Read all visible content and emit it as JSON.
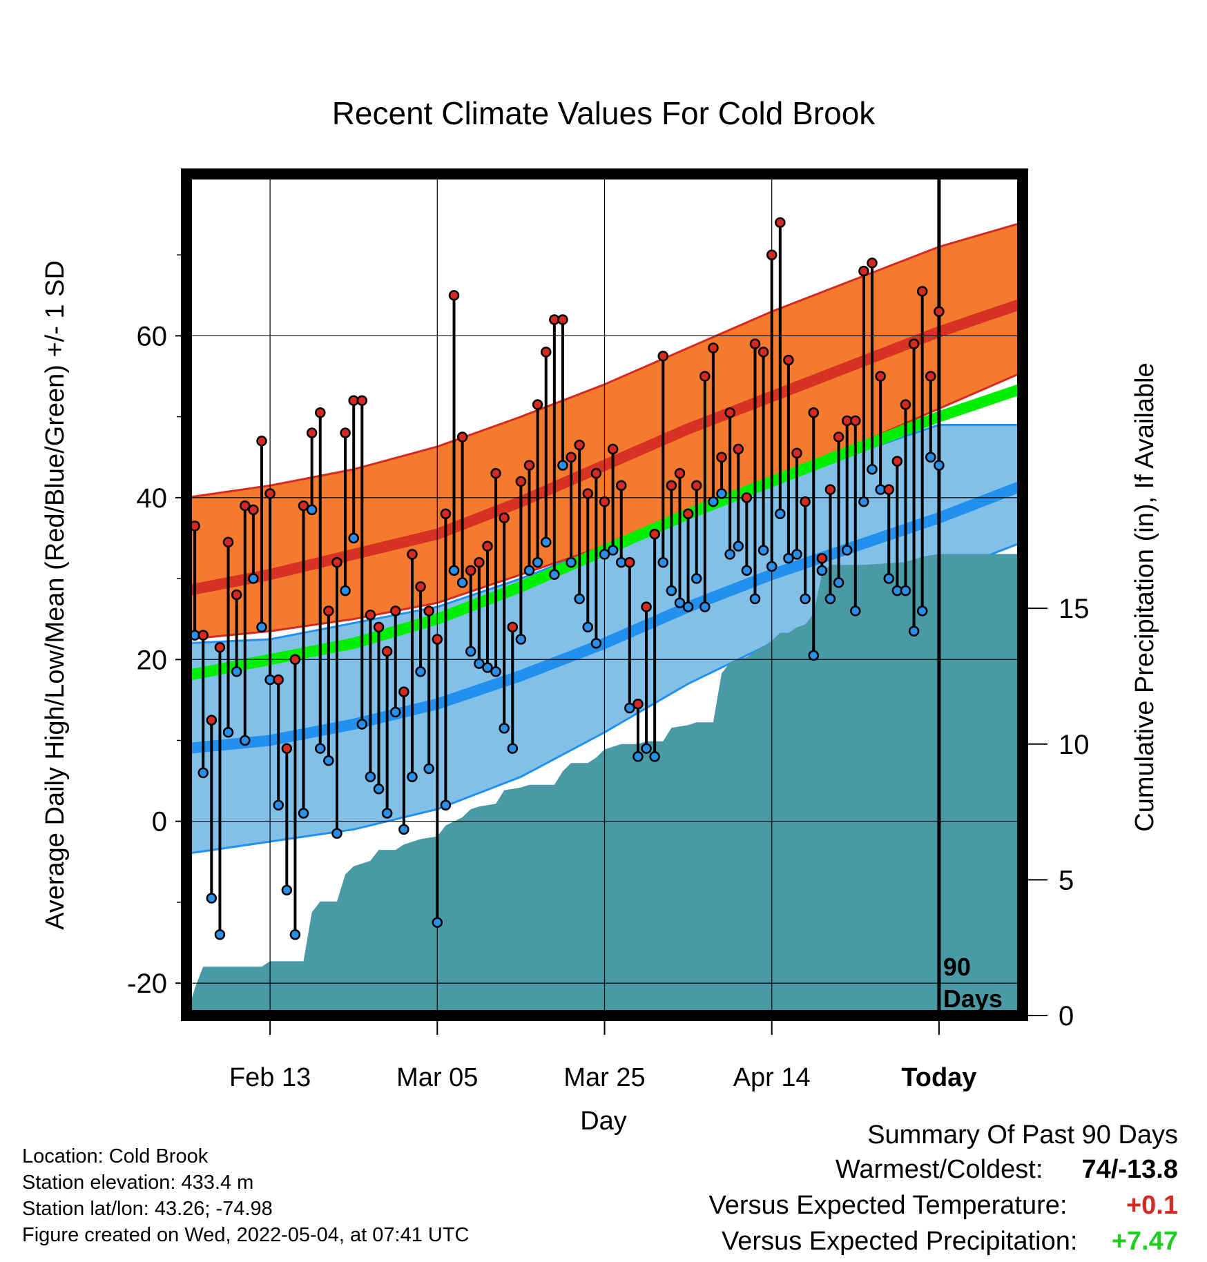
{
  "chart_data": {
    "type": "line",
    "title": "Recent Climate Values For Cold Brook",
    "xlabel": "Day",
    "ylabel": "Average Daily High/Low/Mean (Red/Blue/Green) +/- 1 SD",
    "y2label": "Cumulative Precipitation (in), If Available",
    "x_start_date": "2022-02-03",
    "today_date": "2022-05-04",
    "x_end_date": "2022-05-14",
    "xticks": [
      {
        "date": "2022-02-13",
        "label": "Feb 13"
      },
      {
        "date": "2022-03-05",
        "label": "Mar 05"
      },
      {
        "date": "2022-03-25",
        "label": "Mar 25"
      },
      {
        "date": "2022-04-14",
        "label": "Apr 14"
      },
      {
        "date": "2022-05-04",
        "label": "Today"
      }
    ],
    "ylim": [
      -24,
      80
    ],
    "yticks": [
      -20,
      0,
      20,
      40,
      60
    ],
    "y2lim": [
      0,
      31
    ],
    "y2ticks": [
      0,
      5,
      10,
      15
    ],
    "today_marker": "90\nDays",
    "grid": true,
    "colors": {
      "high_band": "#f47b2e",
      "high_mean": "#d42a22",
      "low_band": "#82c0e8",
      "low_mean": "#2190ee",
      "mean": "#00ee00",
      "precip": "#4a9aa6",
      "high_point": "#d42a22",
      "low_point": "#2b8ee8"
    },
    "normals": {
      "dates": [
        "2022-02-03",
        "2022-02-13",
        "2022-02-23",
        "2022-03-05",
        "2022-03-15",
        "2022-03-25",
        "2022-04-04",
        "2022-04-14",
        "2022-04-24",
        "2022-05-04",
        "2022-05-14"
      ],
      "high_mean": [
        28.5,
        30.5,
        33.0,
        35.5,
        39.5,
        44.0,
        48.5,
        52.5,
        56.5,
        60.5,
        64.0
      ],
      "high_upper": [
        40,
        41.5,
        43.5,
        46.3,
        50.0,
        54.0,
        58.5,
        63.0,
        67.0,
        71.0,
        74.0
      ],
      "high_lower": [
        22.5,
        23.5,
        25.0,
        27.0,
        30.5,
        34.0,
        38.5,
        42.5,
        46.5,
        51.0,
        55.5
      ],
      "mean": [
        18.0,
        20.0,
        22.0,
        25.0,
        29.0,
        33.5,
        38.0,
        42.0,
        46.0,
        50.0,
        53.5
      ],
      "low_mean": [
        9.0,
        10.0,
        12.0,
        14.5,
        18.0,
        22.0,
        26.5,
        30.5,
        34.0,
        37.5,
        41.5
      ],
      "low_upper": [
        22.0,
        22.5,
        24.5,
        26.5,
        30.0,
        34.0,
        38.0,
        42.0,
        45.5,
        49.0,
        49.0
      ],
      "low_lower": [
        -4.0,
        -2.5,
        -1.0,
        1.5,
        5.5,
        11.0,
        17.0,
        22.0,
        26.5,
        30.5,
        34.5
      ]
    },
    "daily": [
      {
        "date": "2022-02-04",
        "high": 36.5,
        "low": 23.0
      },
      {
        "date": "2022-02-05",
        "high": 23.0,
        "low": 6.0
      },
      {
        "date": "2022-02-06",
        "high": 12.5,
        "low": -9.5
      },
      {
        "date": "2022-02-07",
        "high": 21.5,
        "low": -14.0
      },
      {
        "date": "2022-02-08",
        "high": 34.5,
        "low": 11.0
      },
      {
        "date": "2022-02-09",
        "high": 28.0,
        "low": 18.5
      },
      {
        "date": "2022-02-10",
        "high": 39.0,
        "low": 10.0
      },
      {
        "date": "2022-02-11",
        "high": 38.5,
        "low": 30.0
      },
      {
        "date": "2022-02-12",
        "high": 47.0,
        "low": 24.0
      },
      {
        "date": "2022-02-13",
        "high": 40.5,
        "low": 17.5
      },
      {
        "date": "2022-02-14",
        "high": 17.5,
        "low": 2.0
      },
      {
        "date": "2022-02-15",
        "high": 9.0,
        "low": -8.5
      },
      {
        "date": "2022-02-16",
        "high": 20.0,
        "low": -14.0
      },
      {
        "date": "2022-02-17",
        "high": 39.0,
        "low": 1.0
      },
      {
        "date": "2022-02-18",
        "high": 48.0,
        "low": 38.5
      },
      {
        "date": "2022-02-19",
        "high": 50.5,
        "low": 9.0
      },
      {
        "date": "2022-02-20",
        "high": 26.0,
        "low": 7.5
      },
      {
        "date": "2022-02-21",
        "high": 32.0,
        "low": -1.5
      },
      {
        "date": "2022-02-22",
        "high": 48.0,
        "low": 28.5
      },
      {
        "date": "2022-02-23",
        "high": 52.0,
        "low": 35.0
      },
      {
        "date": "2022-02-24",
        "high": 52.0,
        "low": 12.0
      },
      {
        "date": "2022-02-25",
        "high": 25.5,
        "low": 5.5
      },
      {
        "date": "2022-02-26",
        "high": 24.0,
        "low": 4.0
      },
      {
        "date": "2022-02-27",
        "high": 21.0,
        "low": 1.0
      },
      {
        "date": "2022-02-28",
        "high": 26.0,
        "low": 13.5
      },
      {
        "date": "2022-03-01",
        "high": 16.0,
        "low": -1.0
      },
      {
        "date": "2022-03-02",
        "high": 33.0,
        "low": 5.5
      },
      {
        "date": "2022-03-03",
        "high": 29.0,
        "low": 18.5
      },
      {
        "date": "2022-03-04",
        "high": 26.0,
        "low": 6.5
      },
      {
        "date": "2022-03-05",
        "high": 22.5,
        "low": -12.5
      },
      {
        "date": "2022-03-06",
        "high": 38.0,
        "low": 2.0
      },
      {
        "date": "2022-03-07",
        "high": 65.0,
        "low": 31.0
      },
      {
        "date": "2022-03-08",
        "high": 47.5,
        "low": 29.5
      },
      {
        "date": "2022-03-09",
        "high": 31.0,
        "low": 21.0
      },
      {
        "date": "2022-03-10",
        "high": 32.0,
        "low": 19.5
      },
      {
        "date": "2022-03-11",
        "high": 34.0,
        "low": 19.0
      },
      {
        "date": "2022-03-12",
        "high": 43.0,
        "low": 18.5
      },
      {
        "date": "2022-03-13",
        "high": 37.5,
        "low": 11.5
      },
      {
        "date": "2022-03-14",
        "high": 24.0,
        "low": 9.0
      },
      {
        "date": "2022-03-15",
        "high": 42.0,
        "low": 22.5
      },
      {
        "date": "2022-03-16",
        "high": 44.0,
        "low": 31.0
      },
      {
        "date": "2022-03-17",
        "high": 51.5,
        "low": 32.0
      },
      {
        "date": "2022-03-18",
        "high": 58.0,
        "low": 34.5
      },
      {
        "date": "2022-03-19",
        "high": 62.0,
        "low": 30.5
      },
      {
        "date": "2022-03-20",
        "high": 62.0,
        "low": 44.0
      },
      {
        "date": "2022-03-21",
        "high": 45.0,
        "low": 32.0
      },
      {
        "date": "2022-03-22",
        "high": 46.5,
        "low": 27.5
      },
      {
        "date": "2022-03-23",
        "high": 40.5,
        "low": 24.0
      },
      {
        "date": "2022-03-24",
        "high": 43.0,
        "low": 22.0
      },
      {
        "date": "2022-03-25",
        "high": 39.5,
        "low": 33.0
      },
      {
        "date": "2022-03-26",
        "high": 46.0,
        "low": 33.5
      },
      {
        "date": "2022-03-27",
        "high": 41.5,
        "low": 32.0
      },
      {
        "date": "2022-03-28",
        "high": 32.0,
        "low": 14.0
      },
      {
        "date": "2022-03-29",
        "high": 14.5,
        "low": 8.0
      },
      {
        "date": "2022-03-30",
        "high": 26.5,
        "low": 9.0
      },
      {
        "date": "2022-03-31",
        "high": 35.5,
        "low": 8.0
      },
      {
        "date": "2022-04-01",
        "high": 57.5,
        "low": 32.0
      },
      {
        "date": "2022-04-02",
        "high": 41.5,
        "low": 28.5
      },
      {
        "date": "2022-04-03",
        "high": 43.0,
        "low": 27.0
      },
      {
        "date": "2022-04-04",
        "high": 38.0,
        "low": 26.5
      },
      {
        "date": "2022-04-05",
        "high": 41.5,
        "low": 30.0
      },
      {
        "date": "2022-04-06",
        "high": 55.0,
        "low": 26.5
      },
      {
        "date": "2022-04-07",
        "high": 58.5,
        "low": 39.5
      },
      {
        "date": "2022-04-08",
        "high": 45.0,
        "low": 40.5
      },
      {
        "date": "2022-04-09",
        "high": 50.5,
        "low": 33.0
      },
      {
        "date": "2022-04-10",
        "high": 46.0,
        "low": 34.0
      },
      {
        "date": "2022-04-11",
        "high": 40.0,
        "low": 31.0
      },
      {
        "date": "2022-04-12",
        "high": 59.0,
        "low": 27.5
      },
      {
        "date": "2022-04-13",
        "high": 58.0,
        "low": 33.5
      },
      {
        "date": "2022-04-14",
        "high": 70.0,
        "low": 31.5
      },
      {
        "date": "2022-04-15",
        "high": 74.0,
        "low": 38.0
      },
      {
        "date": "2022-04-16",
        "high": 57.0,
        "low": 32.5
      },
      {
        "date": "2022-04-17",
        "high": 45.5,
        "low": 33.0
      },
      {
        "date": "2022-04-18",
        "high": 39.5,
        "low": 27.5
      },
      {
        "date": "2022-04-19",
        "high": 50.5,
        "low": 20.5
      },
      {
        "date": "2022-04-20",
        "high": 32.5,
        "low": 31.0
      },
      {
        "date": "2022-04-21",
        "high": 41.0,
        "low": 27.5
      },
      {
        "date": "2022-04-22",
        "high": 47.5,
        "low": 29.5
      },
      {
        "date": "2022-04-23",
        "high": 49.5,
        "low": 33.5
      },
      {
        "date": "2022-04-24",
        "high": 49.5,
        "low": 26.0
      },
      {
        "date": "2022-04-25",
        "high": 68.0,
        "low": 39.5
      },
      {
        "date": "2022-04-26",
        "high": 69.0,
        "low": 43.5
      },
      {
        "date": "2022-04-27",
        "high": 55.0,
        "low": 41.0
      },
      {
        "date": "2022-04-28",
        "high": 41.0,
        "low": 30.0
      },
      {
        "date": "2022-04-29",
        "high": 44.5,
        "low": 28.5
      },
      {
        "date": "2022-04-30",
        "high": 51.5,
        "low": 28.5
      },
      {
        "date": "2022-05-01",
        "high": 59.0,
        "low": 23.5
      },
      {
        "date": "2022-05-02",
        "high": 65.5,
        "low": 26.0
      },
      {
        "date": "2022-05-03",
        "high": 55.0,
        "low": 45.0
      },
      {
        "date": "2022-05-04",
        "high": 63.0,
        "low": 44.0
      }
    ],
    "precip_cumulative": [
      {
        "date": "2022-02-03",
        "value": 0.0
      },
      {
        "date": "2022-02-04",
        "value": 1.0
      },
      {
        "date": "2022-02-05",
        "value": 1.8
      },
      {
        "date": "2022-02-12",
        "value": 1.8
      },
      {
        "date": "2022-02-13",
        "value": 2.0
      },
      {
        "date": "2022-02-17",
        "value": 2.0
      },
      {
        "date": "2022-02-18",
        "value": 3.8
      },
      {
        "date": "2022-02-19",
        "value": 4.2
      },
      {
        "date": "2022-02-21",
        "value": 4.2
      },
      {
        "date": "2022-02-22",
        "value": 5.2
      },
      {
        "date": "2022-02-23",
        "value": 5.5
      },
      {
        "date": "2022-02-25",
        "value": 5.7
      },
      {
        "date": "2022-02-26",
        "value": 6.1
      },
      {
        "date": "2022-02-28",
        "value": 6.1
      },
      {
        "date": "2022-03-01",
        "value": 6.3
      },
      {
        "date": "2022-03-03",
        "value": 6.5
      },
      {
        "date": "2022-03-05",
        "value": 6.6
      },
      {
        "date": "2022-03-06",
        "value": 7.0
      },
      {
        "date": "2022-03-08",
        "value": 7.3
      },
      {
        "date": "2022-03-09",
        "value": 7.6
      },
      {
        "date": "2022-03-10",
        "value": 7.7
      },
      {
        "date": "2022-03-12",
        "value": 7.8
      },
      {
        "date": "2022-03-13",
        "value": 8.3
      },
      {
        "date": "2022-03-15",
        "value": 8.4
      },
      {
        "date": "2022-03-16",
        "value": 8.5
      },
      {
        "date": "2022-03-19",
        "value": 8.5
      },
      {
        "date": "2022-03-20",
        "value": 9.0
      },
      {
        "date": "2022-03-21",
        "value": 9.3
      },
      {
        "date": "2022-03-23",
        "value": 9.3
      },
      {
        "date": "2022-03-24",
        "value": 9.5
      },
      {
        "date": "2022-03-25",
        "value": 9.8
      },
      {
        "date": "2022-03-27",
        "value": 10.0
      },
      {
        "date": "2022-03-29",
        "value": 10.0
      },
      {
        "date": "2022-03-30",
        "value": 10.1
      },
      {
        "date": "2022-04-01",
        "value": 10.1
      },
      {
        "date": "2022-04-02",
        "value": 10.6
      },
      {
        "date": "2022-04-04",
        "value": 10.7
      },
      {
        "date": "2022-04-05",
        "value": 10.8
      },
      {
        "date": "2022-04-07",
        "value": 10.8
      },
      {
        "date": "2022-04-08",
        "value": 12.6
      },
      {
        "date": "2022-04-09",
        "value": 13.0
      },
      {
        "date": "2022-04-10",
        "value": 13.1
      },
      {
        "date": "2022-04-11",
        "value": 13.2
      },
      {
        "date": "2022-04-13",
        "value": 13.6
      },
      {
        "date": "2022-04-14",
        "value": 13.8
      },
      {
        "date": "2022-04-15",
        "value": 14.1
      },
      {
        "date": "2022-04-16",
        "value": 14.1
      },
      {
        "date": "2022-04-17",
        "value": 14.3
      },
      {
        "date": "2022-04-18",
        "value": 14.4
      },
      {
        "date": "2022-04-19",
        "value": 14.8
      },
      {
        "date": "2022-04-20",
        "value": 16.3
      },
      {
        "date": "2022-04-21",
        "value": 16.6
      },
      {
        "date": "2022-04-24",
        "value": 16.6
      },
      {
        "date": "2022-04-25",
        "value": 16.6
      },
      {
        "date": "2022-04-30",
        "value": 16.7
      },
      {
        "date": "2022-05-02",
        "value": 16.9
      },
      {
        "date": "2022-05-04",
        "value": 17.0
      },
      {
        "date": "2022-05-14",
        "value": 17.0
      }
    ]
  },
  "info": {
    "location": "Location: Cold Brook",
    "elevation": "Station elevation: 433.4 m",
    "latlon": "Station lat/lon: 43.26; -74.98",
    "created": "Figure created on Wed, 2022-05-04, at 07:41 UTC"
  },
  "summary": {
    "title": "Summary Of Past 90 Days",
    "warmest_label": "Warmest/Coldest:",
    "warmest_value": "74/-13.8",
    "temp_label": "Versus Expected Temperature:",
    "temp_value": "+0.1",
    "temp_color": "#d42a22",
    "precip_label": "Versus Expected Precipitation:",
    "precip_value": "+7.47",
    "precip_color": "#22cc22"
  }
}
